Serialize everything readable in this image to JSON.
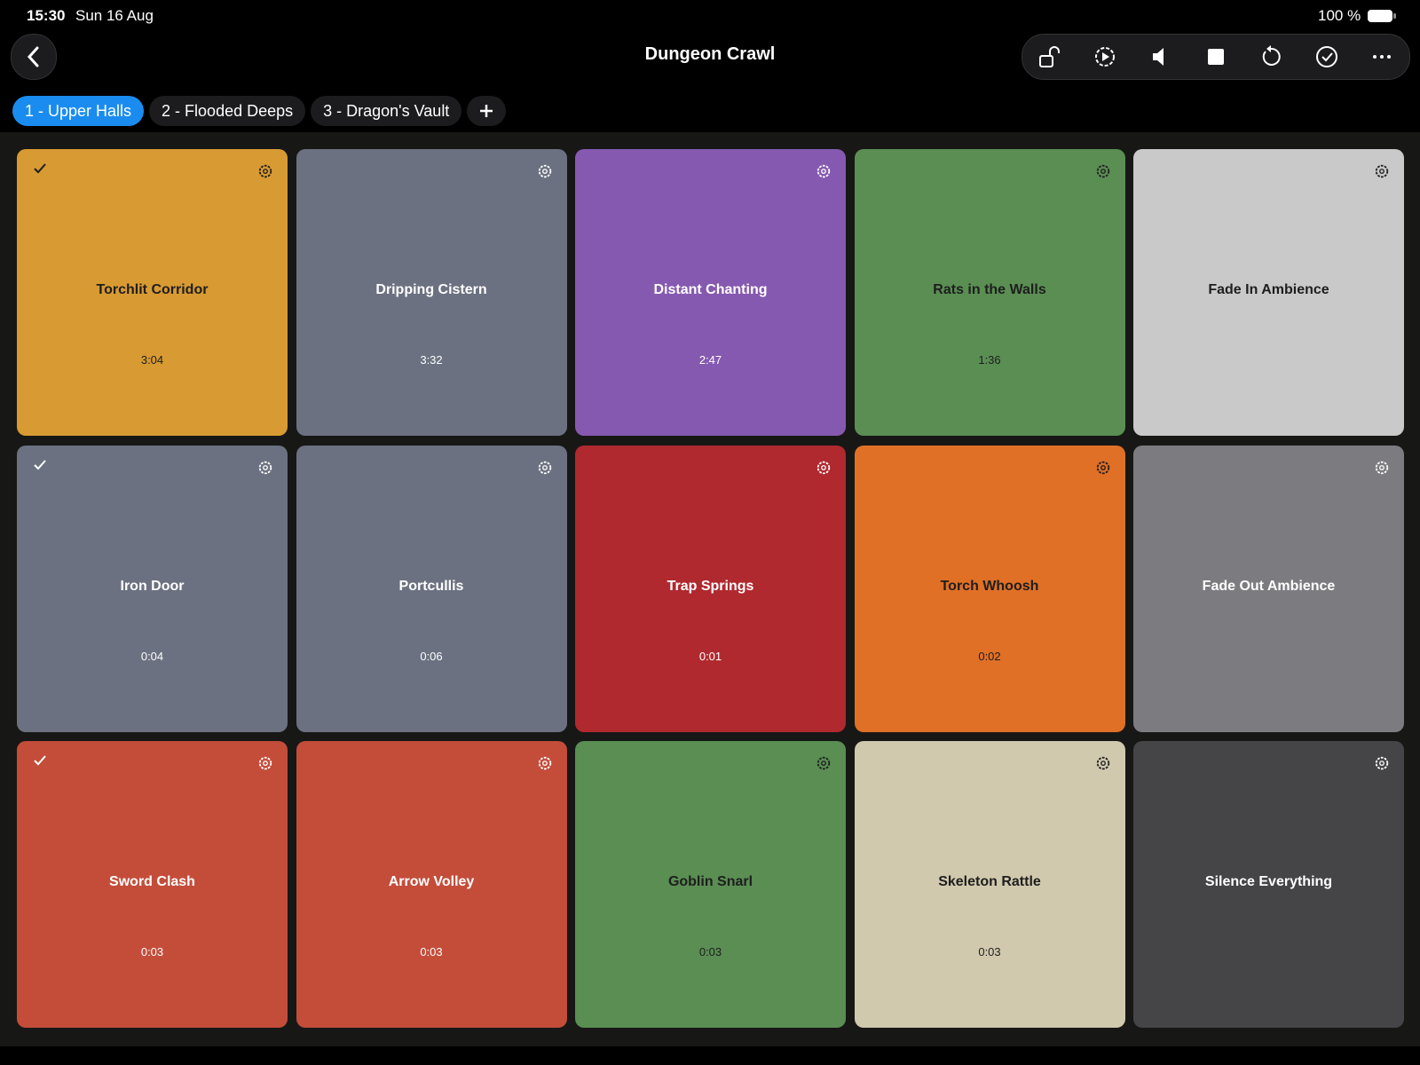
{
  "status_bar": {
    "time": "15:30",
    "date": "Sun 16 Aug",
    "battery": "100 %"
  },
  "header": {
    "title": "Dungeon Crawl"
  },
  "tabs": [
    {
      "label": "1 - Upper Halls",
      "active": true
    },
    {
      "label": "2 - Flooded Deeps",
      "active": false
    },
    {
      "label": "3 - Dragon's Vault",
      "active": false
    }
  ],
  "tiles": [
    {
      "name": "Torchlit Corridor",
      "duration": "3:04",
      "color": "#d89a32",
      "ink": "#1e1e1e",
      "checked": true
    },
    {
      "name": "Dripping Cistern",
      "duration": "3:32",
      "color": "#6b7180",
      "ink": "#ffffff",
      "checked": false
    },
    {
      "name": "Distant Chanting",
      "duration": "2:47",
      "color": "#8659b0",
      "ink": "#ffffff",
      "checked": false
    },
    {
      "name": "Rats in the Walls",
      "duration": "1:36",
      "color": "#5a8e53",
      "ink": "#1e1e1e",
      "checked": false
    },
    {
      "name": "Fade In Ambience",
      "color": "#c9c9c9",
      "ink": "#1e1e1e",
      "checked": false
    },
    {
      "name": "Iron Door",
      "duration": "0:04",
      "color": "#6b7180",
      "ink": "#ffffff",
      "checked": true
    },
    {
      "name": "Portcullis",
      "duration": "0:06",
      "color": "#6b7180",
      "ink": "#ffffff",
      "checked": false
    },
    {
      "name": "Trap Springs",
      "duration": "0:01",
      "color": "#b0292f",
      "ink": "#ffffff",
      "checked": false
    },
    {
      "name": "Torch Whoosh",
      "duration": "0:02",
      "color": "#e07026",
      "ink": "#1e1e1e",
      "checked": false
    },
    {
      "name": "Fade Out Ambience",
      "color": "#7c7c80",
      "ink": "#ffffff",
      "checked": false
    },
    {
      "name": "Sword Clash",
      "duration": "0:03",
      "color": "#c44d3a",
      "ink": "#ffffff",
      "checked": true
    },
    {
      "name": "Arrow Volley",
      "duration": "0:03",
      "color": "#c44d3a",
      "ink": "#ffffff",
      "checked": false
    },
    {
      "name": "Goblin Snarl",
      "duration": "0:03",
      "color": "#5a8e53",
      "ink": "#1e1e1e",
      "checked": false
    },
    {
      "name": "Skeleton Rattle",
      "duration": "0:03",
      "color": "#d1c9ad",
      "ink": "#1e1e1e",
      "checked": false
    },
    {
      "name": "Silence Everything",
      "color": "#454548",
      "ink": "#ffffff",
      "checked": false
    }
  ]
}
